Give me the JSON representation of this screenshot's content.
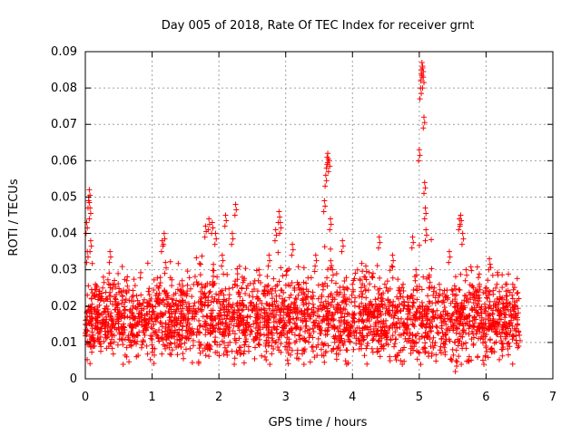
{
  "chart_data": {
    "type": "scatter",
    "title": "Day 005 of 2018, Rate Of TEC Index for receiver grnt",
    "xlabel": "GPS time / hours",
    "ylabel": "ROTI / TECUs",
    "xlim": [
      0,
      7
    ],
    "ylim": [
      0,
      0.09
    ],
    "xticks": [
      "0",
      "1",
      "2",
      "3",
      "4",
      "5",
      "6",
      "7"
    ],
    "yticks": [
      "0",
      "0.01",
      "0.02",
      "0.03",
      "0.04",
      "0.05",
      "0.06",
      "0.07",
      "0.08",
      "0.09"
    ],
    "grid": true,
    "marker": "+",
    "series": [
      {
        "name": "ROTI",
        "color": "#ff0000",
        "x": [
          0.0,
          0.02,
          0.03,
          0.05,
          0.06,
          0.07,
          0.08,
          0.09,
          0.1,
          0.12,
          0.15,
          0.18,
          0.22,
          0.27,
          0.32,
          0.37,
          0.4,
          0.45,
          0.55,
          0.62,
          0.7,
          0.8,
          0.9,
          1.0,
          1.1,
          1.15,
          1.18,
          1.2,
          1.25,
          1.35,
          1.4,
          1.45,
          1.55,
          1.62,
          1.7,
          1.75,
          1.8,
          1.85,
          1.9,
          1.95,
          2.0,
          2.05,
          2.1,
          2.15,
          2.2,
          2.25,
          2.3,
          2.35,
          2.4,
          2.5,
          2.6,
          2.7,
          2.75,
          2.8,
          2.85,
          2.9,
          2.92,
          2.95,
          3.05,
          3.1,
          3.15,
          3.2,
          3.3,
          3.4,
          3.45,
          3.5,
          3.55,
          3.58,
          3.6,
          3.62,
          3.63,
          3.65,
          3.67,
          3.7,
          3.8,
          3.85,
          3.9,
          4.0,
          4.1,
          4.2,
          4.3,
          4.4,
          4.5,
          4.6,
          4.7,
          4.8,
          4.9,
          4.95,
          5.0,
          5.02,
          5.03,
          5.04,
          5.05,
          5.06,
          5.07,
          5.08,
          5.09,
          5.1,
          5.12,
          5.15,
          5.2,
          5.3,
          5.4,
          5.45,
          5.5,
          5.55,
          5.58,
          5.6,
          5.62,
          5.65,
          5.7,
          5.8,
          5.9,
          6.0,
          6.05,
          6.1,
          6.2,
          6.3,
          6.4,
          6.5
        ],
        "y": [
          0.015,
          0.043,
          0.035,
          0.05,
          0.052,
          0.047,
          0.038,
          0.022,
          0.018,
          0.012,
          0.026,
          0.017,
          0.013,
          0.028,
          0.02,
          0.035,
          0.016,
          0.022,
          0.014,
          0.027,
          0.012,
          0.018,
          0.015,
          0.02,
          0.025,
          0.038,
          0.04,
          0.032,
          0.015,
          0.018,
          0.012,
          0.027,
          0.014,
          0.02,
          0.016,
          0.025,
          0.042,
          0.044,
          0.043,
          0.04,
          0.018,
          0.034,
          0.045,
          0.022,
          0.04,
          0.048,
          0.019,
          0.028,
          0.015,
          0.024,
          0.03,
          0.009,
          0.034,
          0.012,
          0.041,
          0.046,
          0.043,
          0.022,
          0.01,
          0.037,
          0.018,
          0.026,
          0.016,
          0.022,
          0.034,
          0.014,
          0.026,
          0.049,
          0.056,
          0.061,
          0.062,
          0.06,
          0.044,
          0.03,
          0.016,
          0.038,
          0.022,
          0.026,
          0.014,
          0.031,
          0.02,
          0.039,
          0.016,
          0.034,
          0.025,
          0.014,
          0.039,
          0.03,
          0.063,
          0.08,
          0.085,
          0.087,
          0.086,
          0.083,
          0.072,
          0.054,
          0.047,
          0.041,
          0.018,
          0.028,
          0.01,
          0.026,
          0.015,
          0.035,
          0.008,
          0.005,
          0.02,
          0.044,
          0.045,
          0.04,
          0.03,
          0.016,
          0.026,
          0.009,
          0.033,
          0.018,
          0.024,
          0.014,
          0.026,
          0.012
        ]
      }
    ],
    "noise_cloud": {
      "description": "dense band of measurements between 0.005 and 0.030 TECU across 0-6.5 h",
      "x_range": [
        0,
        6.5
      ],
      "y_baseline": 0.016,
      "y_spread": 0.007
    }
  }
}
